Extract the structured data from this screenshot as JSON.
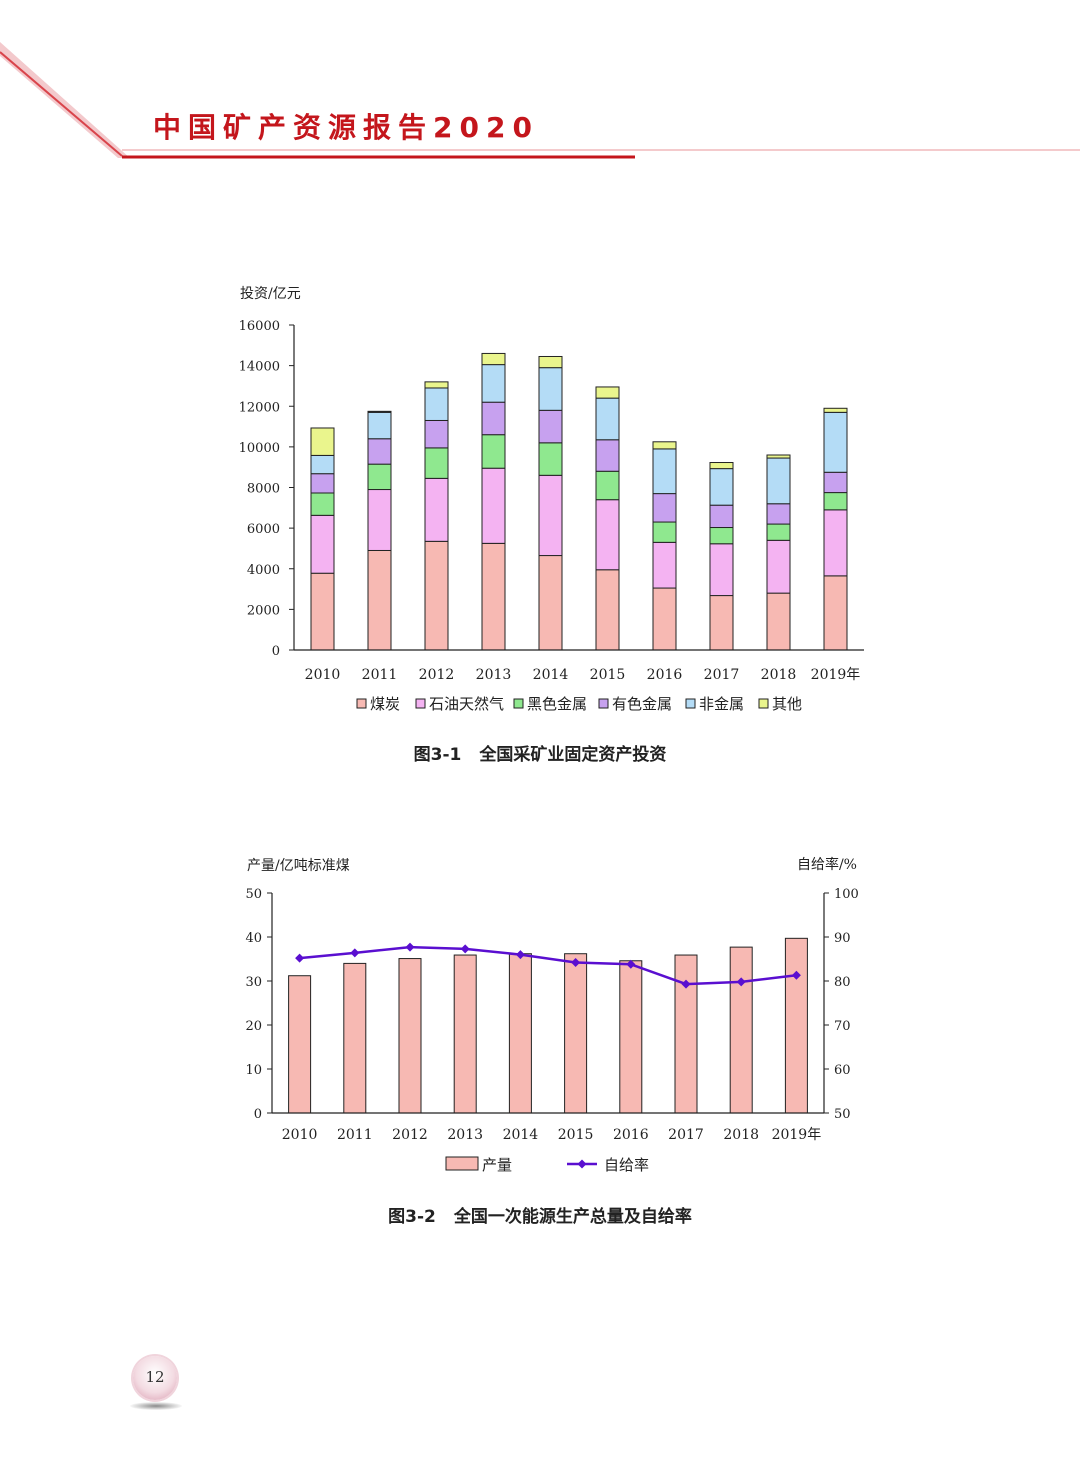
{
  "header": {
    "title": "中国矿产资源报告2020"
  },
  "colors": {
    "coal": "#f7b9b3",
    "oil_gas": "#f4b3f2",
    "ferrous": "#8fe88f",
    "nonferrous": "#c7a1ef",
    "nonmetal": "#b4dcf6",
    "other": "#eaf58d",
    "production_bar": "#f7b9b3",
    "self_sufficiency_line": "#5a0fd0",
    "header_red": "#c4161c"
  },
  "figure1": {
    "caption_number": "图3-1",
    "caption_text": "全国采矿业固定资产投资"
  },
  "figure2": {
    "caption_number": "图3-2",
    "caption_text": "全国一次能源生产总量及自给率"
  },
  "page": {
    "number": "12"
  },
  "chart_data": [
    {
      "type": "bar",
      "stacked": true,
      "ylabel": "投资/亿元",
      "ylim": [
        0,
        16000
      ],
      "yticks": [
        "0",
        "2000",
        "4000",
        "6000",
        "8000",
        "10000",
        "12000",
        "14000",
        "16000"
      ],
      "categories": [
        "2010",
        "2011",
        "2012",
        "2013",
        "2014",
        "2015",
        "2016",
        "2017",
        "2018",
        "2019年"
      ],
      "legend_position": "bottom",
      "series": [
        {
          "name": "煤炭",
          "color_key": "coal",
          "values": [
            3780,
            4900,
            5350,
            5250,
            4650,
            3950,
            3050,
            2680,
            2800,
            3650
          ]
        },
        {
          "name": "石油天然气",
          "color_key": "oil_gas",
          "values": [
            2850,
            3000,
            3100,
            3700,
            3950,
            3450,
            2250,
            2550,
            2600,
            3250
          ]
        },
        {
          "name": "黑色金属",
          "color_key": "ferrous",
          "values": [
            1100,
            1250,
            1500,
            1650,
            1600,
            1400,
            1000,
            800,
            800,
            850
          ]
        },
        {
          "name": "有色金属",
          "color_key": "nonferrous",
          "values": [
            950,
            1250,
            1350,
            1600,
            1600,
            1550,
            1400,
            1100,
            1000,
            1000
          ]
        },
        {
          "name": "非金属",
          "color_key": "nonmetal",
          "values": [
            900,
            1300,
            1600,
            1850,
            2100,
            2050,
            2200,
            1800,
            2250,
            2950
          ]
        },
        {
          "name": "其他",
          "color_key": "other",
          "values": [
            1350,
            50,
            300,
            550,
            550,
            550,
            350,
            300,
            150,
            200
          ]
        }
      ]
    },
    {
      "type": "bar",
      "combo": "bar+line",
      "ylabel": "产量/亿吨标准煤",
      "y2label": "自给率/%",
      "ylim": [
        0,
        50
      ],
      "y2lim": [
        50,
        100
      ],
      "yticks": [
        "0",
        "10",
        "20",
        "30",
        "40",
        "50"
      ],
      "y2ticks": [
        "50",
        "60",
        "70",
        "80",
        "90",
        "100"
      ],
      "categories": [
        "2010",
        "2011",
        "2012",
        "2013",
        "2014",
        "2015",
        "2016",
        "2017",
        "2018",
        "2019年"
      ],
      "legend_position": "bottom",
      "series": [
        {
          "name": "产量",
          "kind": "bar",
          "axis": "left",
          "color_key": "production_bar",
          "values": [
            31.2,
            34.0,
            35.1,
            35.9,
            36.2,
            36.2,
            34.6,
            35.9,
            37.7,
            39.7
          ]
        },
        {
          "name": "自给率",
          "kind": "line",
          "axis": "right",
          "color_key": "self_sufficiency_line",
          "values": [
            85.2,
            86.4,
            87.7,
            87.3,
            86.0,
            84.2,
            83.8,
            79.3,
            79.8,
            81.3
          ]
        }
      ]
    }
  ]
}
